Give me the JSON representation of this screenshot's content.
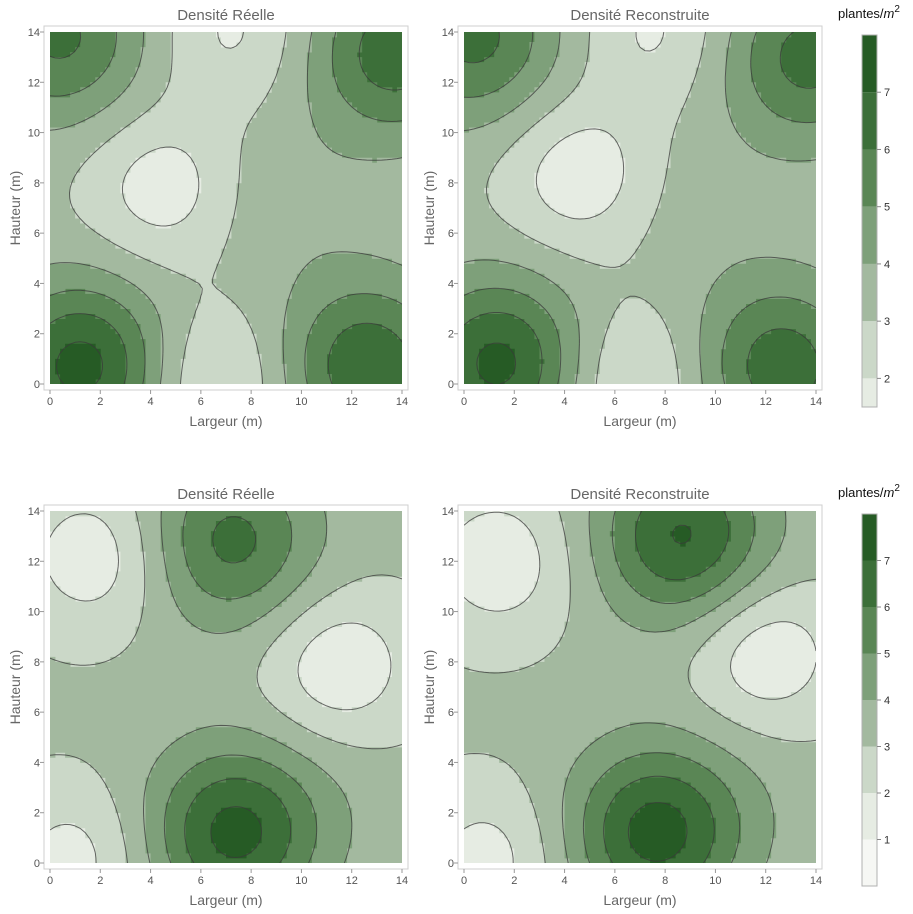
{
  "colorbar_unit": "plantes/",
  "colorbar_unit_var": "m",
  "colorbar_unit_exp": "2",
  "palette": [
    "#f6f7f4",
    "#e6ece3",
    "#cbd8c8",
    "#a3b99f",
    "#7ea07a",
    "#5a8655",
    "#3c6f39",
    "#265b25",
    "#063a07"
  ],
  "line_color": "#3a3a3a",
  "chart_data": [
    {
      "type": "heatmap",
      "title": "Densité Réelle",
      "xlabel": "Largeur (m)",
      "ylabel": "Hauteur (m)",
      "xlim": [
        0,
        14
      ],
      "ylim": [
        0,
        14
      ],
      "x_ticks": [
        0,
        2,
        4,
        6,
        8,
        10,
        12,
        14
      ],
      "y_ticks": [
        0,
        2,
        4,
        6,
        8,
        10,
        12,
        14
      ],
      "contour_levels": [
        2,
        3,
        4,
        5,
        6,
        7
      ],
      "legend": "right",
      "peaks": [
        {
          "x": 1.3,
          "y": 0.7,
          "value": 7.4
        },
        {
          "x": 12.6,
          "y": 0.7,
          "value": 6.8
        },
        {
          "x": 0.4,
          "y": 13.8,
          "value": 6.2
        },
        {
          "x": 13.7,
          "y": 13.2,
          "value": 6.6
        },
        {
          "x": 9.2,
          "y": 7.3,
          "value": 3.8
        }
      ],
      "minima": [
        {
          "x": 4.5,
          "y": 7.8,
          "value": 1.4
        },
        {
          "x": 6.5,
          "y": 0.2,
          "value": 1.6
        },
        {
          "x": 7.3,
          "y": 14,
          "value": 1.8
        }
      ]
    },
    {
      "type": "heatmap",
      "title": "Densité Reconstruite",
      "xlabel": "Largeur (m)",
      "ylabel": "Hauteur (m)",
      "xlim": [
        0,
        14
      ],
      "ylim": [
        0,
        14
      ],
      "x_ticks": [
        0,
        2,
        4,
        6,
        8,
        10,
        12,
        14
      ],
      "y_ticks": [
        0,
        2,
        4,
        6,
        8,
        10,
        12,
        14
      ],
      "contour_levels": [
        2,
        3,
        4,
        5,
        6,
        7
      ],
      "legend": "right",
      "peaks": [
        {
          "x": 1.4,
          "y": 0.8,
          "value": 7.3
        },
        {
          "x": 12.6,
          "y": 0.7,
          "value": 6.6
        },
        {
          "x": 0.4,
          "y": 13.8,
          "value": 6.3
        },
        {
          "x": 13.7,
          "y": 13.0,
          "value": 6.4
        },
        {
          "x": 9.3,
          "y": 7.0,
          "value": 3.6
        }
      ],
      "minima": [
        {
          "x": 4.6,
          "y": 8.3,
          "value": 1.3
        },
        {
          "x": 6.6,
          "y": 0.2,
          "value": 1.6
        },
        {
          "x": 7.6,
          "y": 14,
          "value": 1.8
        }
      ]
    },
    {
      "type": "heatmap",
      "title": "Densité Réelle",
      "xlabel": "Largeur (m)",
      "ylabel": "Hauteur (m)",
      "xlim": [
        0,
        14
      ],
      "ylim": [
        0,
        14
      ],
      "x_ticks": [
        0,
        2,
        4,
        6,
        8,
        10,
        12,
        14
      ],
      "y_ticks": [
        0,
        2,
        4,
        6,
        8,
        10,
        12,
        14
      ],
      "contour_levels": [
        1,
        2,
        3,
        4,
        5,
        6,
        7
      ],
      "legend": "right",
      "peaks": [
        {
          "x": 7.3,
          "y": 1.2,
          "value": 7.3
        },
        {
          "x": 7.2,
          "y": 12.8,
          "value": 6.3
        },
        {
          "x": 11.0,
          "y": 3.0,
          "value": 3.5
        }
      ],
      "minima": [
        {
          "x": 1.8,
          "y": 12.2,
          "value": 1.3
        },
        {
          "x": 11.5,
          "y": 7.8,
          "value": 1.2
        },
        {
          "x": 1.0,
          "y": 0.2,
          "value": 1.6
        }
      ]
    },
    {
      "type": "heatmap",
      "title": "Densité Reconstruite",
      "xlabel": "Largeur (m)",
      "ylabel": "Hauteur (m)",
      "xlim": [
        0,
        14
      ],
      "ylim": [
        0,
        14
      ],
      "x_ticks": [
        0,
        2,
        4,
        6,
        8,
        10,
        12,
        14
      ],
      "y_ticks": [
        0,
        2,
        4,
        6,
        8,
        10,
        12,
        14
      ],
      "contour_levels": [
        1,
        2,
        3,
        4,
        5,
        6,
        7
      ],
      "legend": "right",
      "peaks": [
        {
          "x": 7.6,
          "y": 1.2,
          "value": 7.4
        },
        {
          "x": 8.7,
          "y": 13.0,
          "value": 7.1
        },
        {
          "x": 11.0,
          "y": 3.0,
          "value": 3.5
        }
      ],
      "minima": [
        {
          "x": 1.4,
          "y": 12.0,
          "value": 1.3
        },
        {
          "x": 12.0,
          "y": 8.3,
          "value": 1.2
        },
        {
          "x": 1.0,
          "y": 0.2,
          "value": 1.6
        }
      ]
    }
  ],
  "colorbars": [
    {
      "ticks": [
        2,
        3,
        4,
        5,
        6,
        7
      ],
      "range": [
        1.5,
        8
      ]
    },
    {
      "ticks": [
        1,
        2,
        3,
        4,
        5,
        6,
        7
      ],
      "range": [
        0,
        8
      ]
    }
  ]
}
